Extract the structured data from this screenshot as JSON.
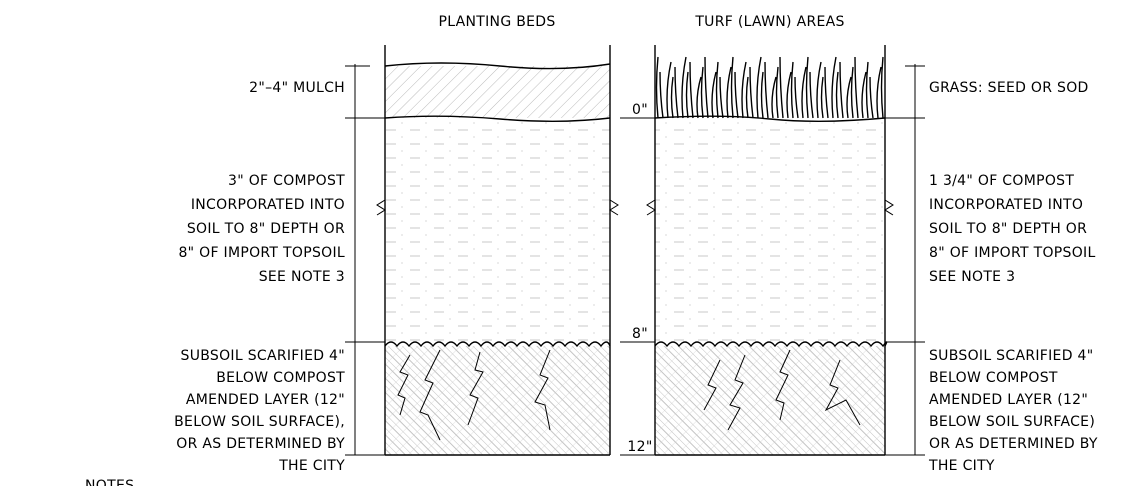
{
  "header": {
    "left": "PLANTING BEDS",
    "right": "TURF (LAWN) AREAS"
  },
  "left_labels": {
    "mulch": "2\"–4\" MULCH",
    "compost": [
      "3\" OF COMPOST",
      "INCORPORATED INTO",
      "SOIL TO 8\" DEPTH OR",
      "8\" OF IMPORT TOPSOIL",
      "SEE NOTE 3"
    ],
    "subsoil": [
      "SUBSOIL SCARIFIED 4\"",
      "BELOW COMPOST",
      "AMENDED LAYER (12\"",
      "BELOW SOIL SURFACE),",
      "OR AS DETERMINED BY",
      "THE CITY"
    ]
  },
  "depths": [
    "0\"",
    "8\"",
    "12\""
  ],
  "right_labels": {
    "grass": "GRASS: SEED OR SOD",
    "compost": [
      "1 3/4\" OF COMPOST",
      "INCORPORATED INTO",
      "SOIL TO 8\" DEPTH OR",
      "8\" OF IMPORT TOPSOIL",
      "SEE NOTE 3"
    ],
    "subsoil": [
      "SUBSOIL SCARIFIED 4\"",
      "BELOW COMPOST",
      "AMENDED LAYER (12\"",
      "BELOW SOIL SURFACE)",
      "OR AS DETERMINED BY",
      "THE CITY"
    ]
  },
  "notes": "NOTES"
}
